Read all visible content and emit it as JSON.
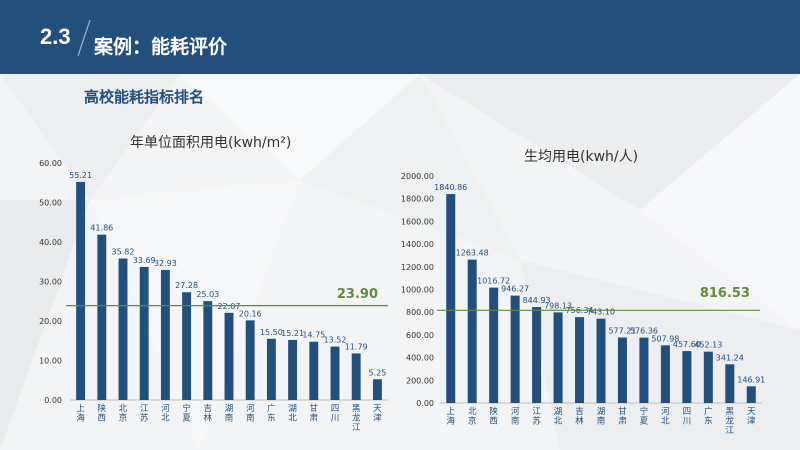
{
  "header": {
    "section_number": "2.3",
    "title": "案例：能耗评价"
  },
  "subtitle": "高校能耗指标排名",
  "colors": {
    "header_bg": "#234f7d",
    "bar": "#234f7d",
    "avg_line": "#5f8c3a",
    "label": "#234f7d"
  },
  "chart_data": [
    {
      "type": "bar",
      "title": "年单位面积用电(kwh/m²)",
      "categories": [
        "上海",
        "陕西",
        "北京",
        "江苏",
        "河北",
        "宁夏",
        "吉林",
        "湖南",
        "河南",
        "广东",
        "湖北",
        "甘肃",
        "四川",
        "黑龙江",
        "天津"
      ],
      "values": [
        55.21,
        41.86,
        35.82,
        33.69,
        32.93,
        27.28,
        25.03,
        22.07,
        20.16,
        15.5,
        15.21,
        14.75,
        13.52,
        11.79,
        5.25
      ],
      "value_labels": [
        "55.21",
        "41.86",
        "35.82",
        "33.69",
        "32.93",
        "27.28",
        "25.03",
        "22.07",
        "20.16",
        "15.50",
        "15.21",
        "14.75",
        "13.52",
        "11.79",
        "5.25"
      ],
      "ylim": [
        0,
        60
      ],
      "yticks": [
        "0.00",
        "10.00",
        "20.00",
        "30.00",
        "40.00",
        "50.00",
        "60.00"
      ],
      "average": {
        "value": 23.9,
        "label": "23.90"
      },
      "xlabel": "",
      "ylabel": ""
    },
    {
      "type": "bar",
      "title": "生均用电(kwh/人)",
      "categories": [
        "上海",
        "北京",
        "陕西",
        "河南",
        "江苏",
        "湖北",
        "吉林",
        "湖南",
        "甘肃",
        "宁夏",
        "河北",
        "四川",
        "广东",
        "黑龙江",
        "天津"
      ],
      "values": [
        1840.86,
        1263.48,
        1016.72,
        946.27,
        844.93,
        798.13,
        756.34,
        743.1,
        577.21,
        576.36,
        507.98,
        457.6,
        452.13,
        341.24,
        146.91
      ],
      "value_labels": [
        "1840.86",
        "1263.48",
        "1016.72",
        "946.27",
        "844.93",
        "798.13",
        "756.34",
        "743.10",
        "577.21",
        "576.36",
        "507.98",
        "457.60",
        "452.13",
        "341.24",
        "146.91"
      ],
      "ylim": [
        0,
        2000
      ],
      "yticks": [
        "0.00",
        "200.00",
        "400.00",
        "600.00",
        "800.00",
        "1000.00",
        "1200.00",
        "1400.00",
        "1600.00",
        "1800.00",
        "2000.00"
      ],
      "average": {
        "value": 816.53,
        "label": "816.53"
      },
      "xlabel": "",
      "ylabel": ""
    }
  ]
}
